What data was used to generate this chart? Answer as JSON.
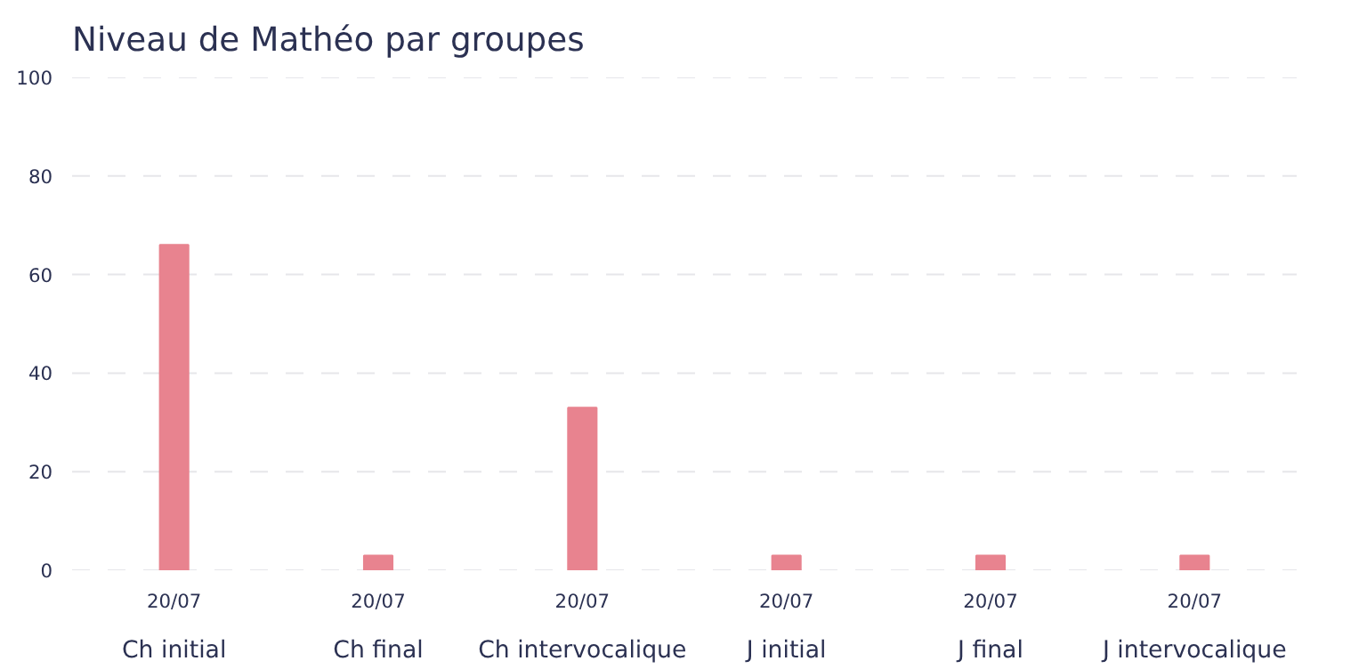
{
  "chart_data": {
    "type": "bar",
    "title": "Niveau de Mathéo par groupes",
    "categories": [
      "Ch initial",
      "Ch final",
      "Ch intervocalique",
      "J initial",
      "J final",
      "J intervocalique"
    ],
    "values": [
      66,
      3,
      33,
      3,
      3,
      3
    ],
    "color": "#e8838f",
    "annotations": [
      "20/07",
      "20/07",
      "20/07",
      "20/07",
      "20/07",
      "20/07"
    ],
    "ylim": [
      0,
      100
    ],
    "yticks": [
      0,
      20,
      40,
      60,
      80,
      100
    ],
    "grid": "y"
  }
}
